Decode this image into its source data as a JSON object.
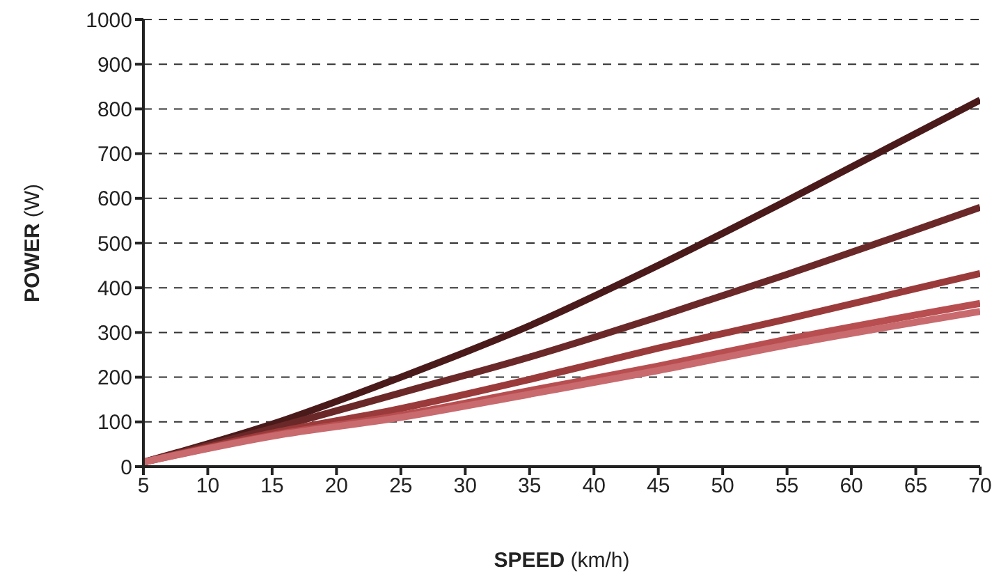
{
  "chart_data": {
    "type": "line",
    "xlabel": "SPEED (km/h)",
    "ylabel": "POWER (W)",
    "x": [
      5,
      15,
      25,
      35,
      45,
      55,
      70
    ],
    "series": [
      {
        "color": "#4a1a1a",
        "values": [
          10,
          95,
          200,
          315,
          450,
          595,
          820
        ]
      },
      {
        "color": "#6b2828",
        "values": [
          10,
          85,
          165,
          245,
          335,
          430,
          580
        ]
      },
      {
        "color": "#9b3a3a",
        "values": [
          10,
          75,
          130,
          195,
          265,
          330,
          432
        ]
      },
      {
        "color": "#b84e50",
        "values": [
          10,
          70,
          115,
          170,
          225,
          285,
          365
        ]
      },
      {
        "color": "#c86a6e",
        "values": [
          10,
          68,
          110,
          162,
          215,
          272,
          347
        ]
      }
    ],
    "xlim": [
      5,
      70
    ],
    "xticks": [
      5,
      10,
      15,
      20,
      25,
      30,
      35,
      40,
      45,
      50,
      55,
      60,
      65,
      70
    ],
    "ylim": [
      0,
      1000
    ],
    "yticks": [
      0,
      100,
      200,
      300,
      400,
      500,
      600,
      700,
      800,
      900,
      1000
    ],
    "grid": "y",
    "legend": false,
    "marker": "none",
    "line_style": "solid"
  }
}
